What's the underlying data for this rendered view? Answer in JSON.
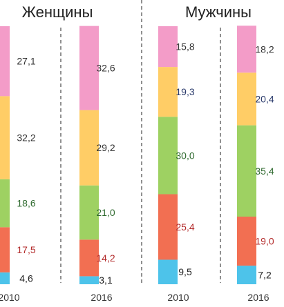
{
  "chart_data": {
    "type": "bar",
    "stacked": true,
    "percent": true,
    "groups": [
      {
        "title": "Женщины",
        "categories": [
          "2010",
          "2016"
        ],
        "segments": [
          {
            "values": [
              4.6,
              3.1
            ],
            "labels": [
              "4,6",
              "3,1"
            ],
            "color": "#4dc3ea",
            "label_color": "#222222"
          },
          {
            "values": [
              17.5,
              14.2
            ],
            "labels": [
              "17,5",
              "14,2"
            ],
            "color": "#f26f52",
            "label_color": "#b32b2b"
          },
          {
            "values": [
              18.6,
              21.0
            ],
            "labels": [
              "18,6",
              "21,0"
            ],
            "color": "#9ed162",
            "label_color": "#2f6a2f"
          },
          {
            "values": [
              32.2,
              29.2
            ],
            "labels": [
              "32,2",
              "29,2"
            ],
            "color": "#ffcd66",
            "label_color": "#333333"
          },
          {
            "values": [
              27.1,
              32.6
            ],
            "labels": [
              "27,1",
              "32,6"
            ],
            "color": "#f39cc8",
            "label_color": "#333333"
          }
        ]
      },
      {
        "title": "Мужчины",
        "categories": [
          "2010",
          "2016"
        ],
        "segments": [
          {
            "values": [
              9.5,
              7.2
            ],
            "labels": [
              "9,5",
              "7,2"
            ],
            "color": "#4dc3ea",
            "label_color": "#222222"
          },
          {
            "values": [
              25.4,
              19.0
            ],
            "labels": [
              "25,4",
              "19,0"
            ],
            "color": "#f26f52",
            "label_color": "#b32b2b"
          },
          {
            "values": [
              30.0,
              35.4
            ],
            "labels": [
              "30,0",
              "35,4"
            ],
            "color": "#9ed162",
            "label_color": "#2f6a2f"
          },
          {
            "values": [
              19.3,
              20.4
            ],
            "labels": [
              "19,3",
              "20,4"
            ],
            "color": "#ffcd66",
            "label_color": "#2a3a6b"
          },
          {
            "values": [
              15.8,
              18.2
            ],
            "labels": [
              "15,8",
              "18,2"
            ],
            "color": "#f39cc8",
            "label_color": "#333333"
          }
        ]
      }
    ],
    "legend": "none",
    "grid": false
  }
}
